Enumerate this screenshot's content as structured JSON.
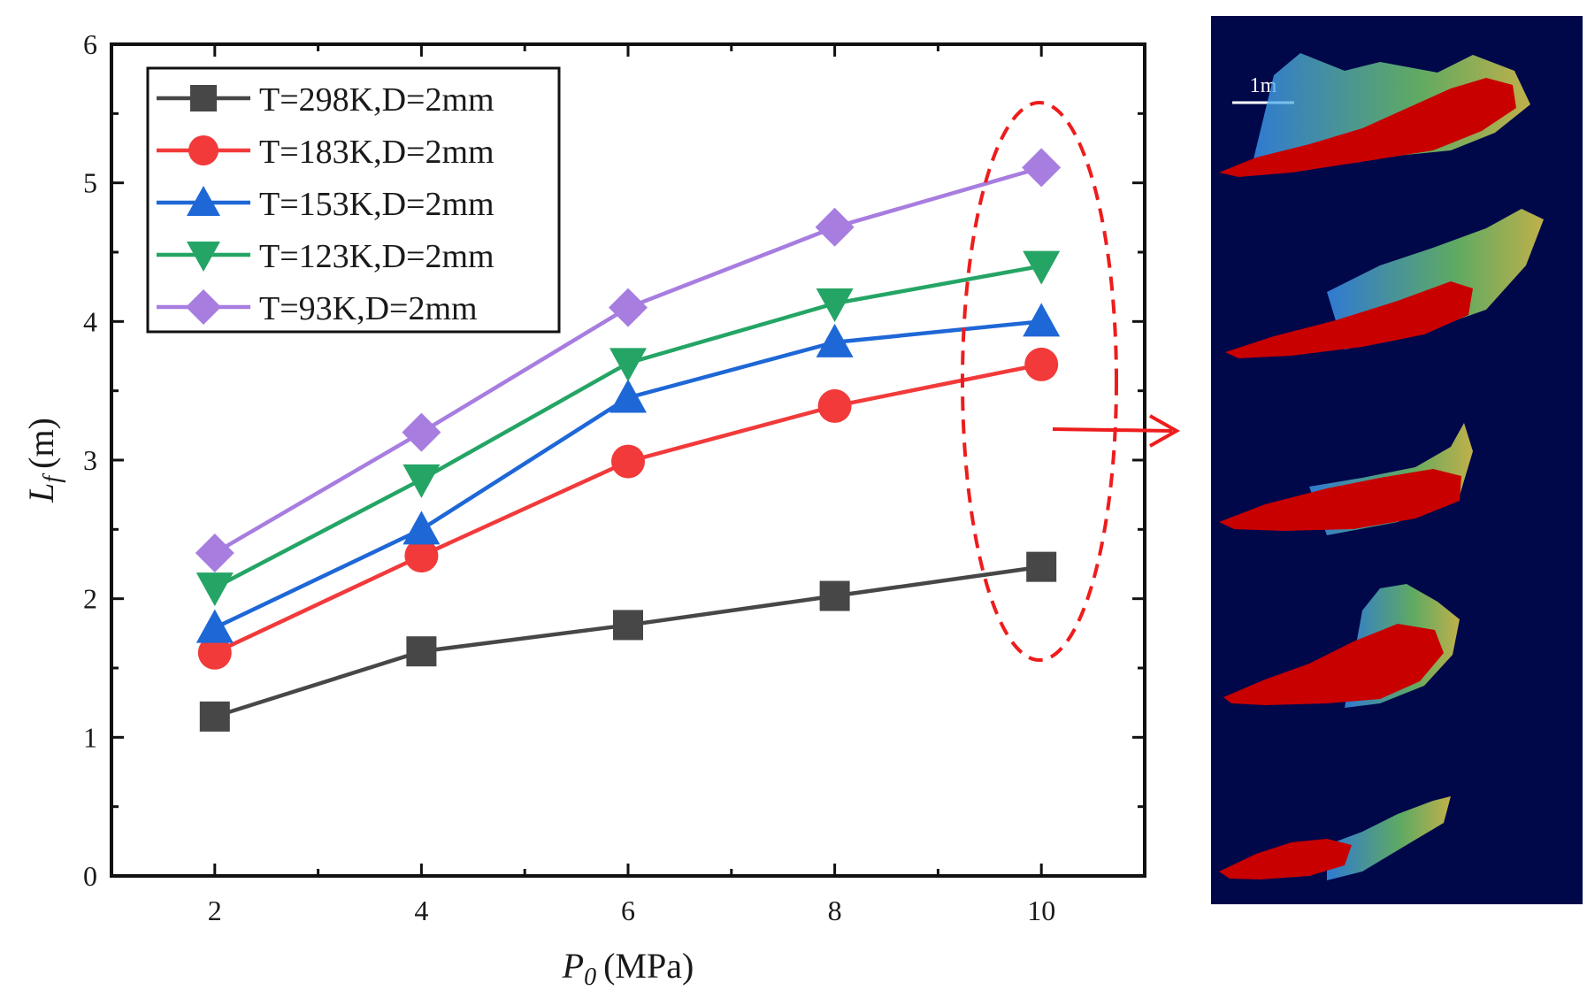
{
  "chart_data": {
    "type": "line",
    "xlabel_symbol": "P",
    "xlabel_sub": "0",
    "xlabel_unit": "(MPa)",
    "ylabel_symbol": "L",
    "ylabel_sub": "f",
    "ylabel_unit": "(m)",
    "xlim": [
      1,
      11
    ],
    "ylim": [
      0,
      6
    ],
    "x": [
      2,
      4,
      6,
      8,
      10
    ],
    "xticks": [
      "2",
      "4",
      "6",
      "8",
      "10"
    ],
    "yticks": [
      "0",
      "1",
      "2",
      "3",
      "4",
      "5",
      "6"
    ],
    "legend_position": "top-left",
    "series": [
      {
        "name": "T=298K,D=2mm",
        "color": "#474747",
        "marker": "square",
        "values": [
          1.15,
          1.62,
          1.81,
          2.02,
          2.23
        ]
      },
      {
        "name": "T=183K,D=2mm",
        "color": "#f23a3a",
        "marker": "circle",
        "values": [
          1.61,
          2.31,
          2.99,
          3.39,
          3.69
        ]
      },
      {
        "name": "T=153K,D=2mm",
        "color": "#1e67d6",
        "marker": "triangle-up",
        "values": [
          1.79,
          2.5,
          3.45,
          3.85,
          4.0
        ]
      },
      {
        "name": "T=123K,D=2mm",
        "color": "#24a565",
        "marker": "triangle-down",
        "values": [
          2.08,
          2.86,
          3.7,
          4.13,
          4.4
        ]
      },
      {
        "name": "T=93K,D=2mm",
        "color": "#a77de0",
        "marker": "diamond",
        "values": [
          2.33,
          3.2,
          4.1,
          4.68,
          5.11
        ]
      }
    ],
    "annotation": "dashed red ellipse highlighting the P0 = 10 MPa points, with an arrow pointing to the flame contour panel"
  },
  "panel": {
    "background_color": "#00084a",
    "scale_bar_label": "1m",
    "flame_count": 5
  }
}
